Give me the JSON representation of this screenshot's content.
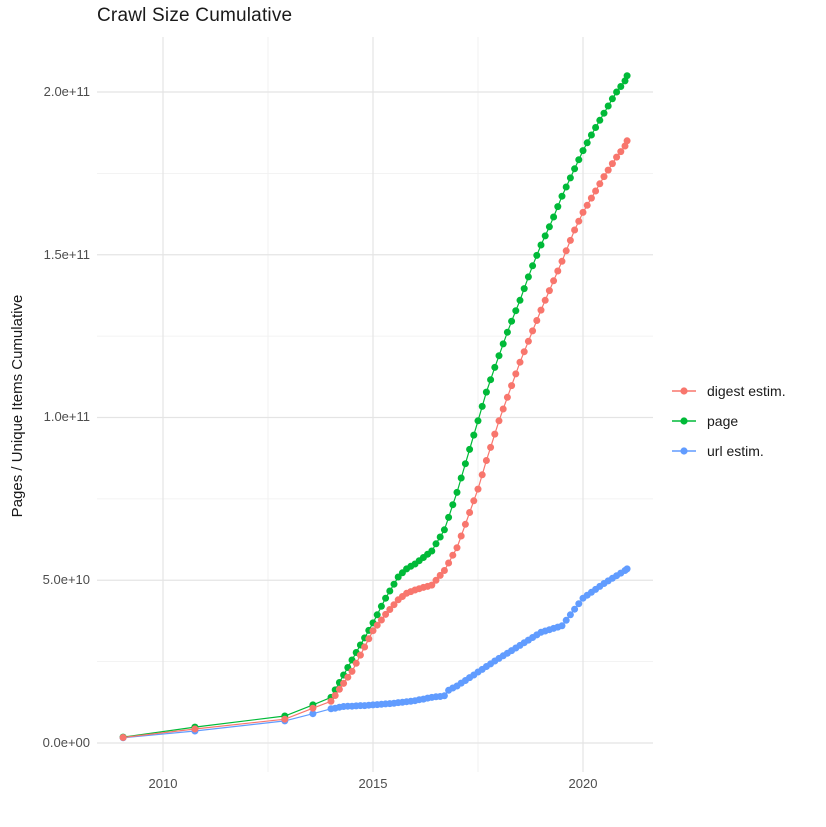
{
  "title": "Crawl Size Cumulative",
  "y_axis_title": "Pages / Unique Items Cumulative",
  "y_ticks": [
    {
      "label": "0.0e+00",
      "value_e10": 0
    },
    {
      "label": "5.0e+10",
      "value_e10": 5
    },
    {
      "label": "1.0e+11",
      "value_e10": 10
    },
    {
      "label": "1.5e+11",
      "value_e10": 15
    },
    {
      "label": "2.0e+11",
      "value_e10": 20
    }
  ],
  "x_ticks": [
    {
      "label": "2010",
      "year": 2010
    },
    {
      "label": "2015",
      "year": 2015
    },
    {
      "label": "2020",
      "year": 2020
    }
  ],
  "legend": {
    "items": [
      {
        "label": "digest estim.",
        "color": "#F8766D",
        "icon": "line-dot-key-icon"
      },
      {
        "label": "page",
        "color": "#00BA38",
        "icon": "line-dot-key-icon"
      },
      {
        "label": "url estim.",
        "color": "#619CFF",
        "icon": "line-dot-key-icon"
      }
    ]
  },
  "colors": {
    "background": "#ffffff",
    "grid_major": "#e4e4e4",
    "grid_minor": "#efefef",
    "tick_text": "#4d4d4d",
    "title_text": "#1a1a1a",
    "series_digest": "#F8766D",
    "series_page": "#00BA38",
    "series_url": "#619CFF"
  },
  "chart_data": {
    "type": "line",
    "subtype": "line-with-points",
    "title": "Crawl Size Cumulative",
    "xlabel": "",
    "ylabel": "Pages / Unique Items Cumulative",
    "x_unit": "calendar year (decimal)",
    "y_unit": "count, values stored in units of 1e10",
    "xlim": [
      2008.45,
      2021.65
    ],
    "ylim_e10": [
      -0.9,
      21.7
    ],
    "grid": true,
    "legend_position": "right",
    "minor_x_years": [
      2012.5,
      2017.5
    ],
    "minor_y_values_e10": [
      2.5,
      7.5,
      12.5,
      17.5
    ],
    "draw_order": [
      "page",
      "url estim.",
      "digest estim."
    ],
    "series": [
      {
        "name": "digest estim.",
        "color": "#F8766D",
        "points_year_e10": [
          [
            2009.05,
            0.17
          ],
          [
            2010.76,
            0.43
          ],
          [
            2012.9,
            0.73
          ],
          [
            2013.57,
            1.07
          ],
          [
            2014.0,
            1.28
          ],
          [
            2014.1,
            1.46
          ],
          [
            2014.2,
            1.65
          ],
          [
            2014.3,
            1.83
          ],
          [
            2014.4,
            2.02
          ],
          [
            2014.5,
            2.2
          ],
          [
            2014.6,
            2.45
          ],
          [
            2014.7,
            2.7
          ],
          [
            2014.8,
            2.95
          ],
          [
            2014.9,
            3.2
          ],
          [
            2015.0,
            3.45
          ],
          [
            2015.1,
            3.62
          ],
          [
            2015.2,
            3.78
          ],
          [
            2015.3,
            3.95
          ],
          [
            2015.4,
            4.1
          ],
          [
            2015.5,
            4.25
          ],
          [
            2015.6,
            4.4
          ],
          [
            2015.7,
            4.5
          ],
          [
            2015.8,
            4.6
          ],
          [
            2015.9,
            4.65
          ],
          [
            2016.0,
            4.7
          ],
          [
            2016.1,
            4.74
          ],
          [
            2016.2,
            4.78
          ],
          [
            2016.3,
            4.81
          ],
          [
            2016.4,
            4.85
          ],
          [
            2016.5,
            5.0
          ],
          [
            2016.6,
            5.15
          ],
          [
            2016.7,
            5.3
          ],
          [
            2016.8,
            5.53
          ],
          [
            2016.9,
            5.77
          ],
          [
            2017.0,
            6.0
          ],
          [
            2017.1,
            6.36
          ],
          [
            2017.2,
            6.72
          ],
          [
            2017.3,
            7.08
          ],
          [
            2017.4,
            7.44
          ],
          [
            2017.5,
            7.8
          ],
          [
            2017.6,
            8.24
          ],
          [
            2017.7,
            8.68
          ],
          [
            2017.8,
            9.08
          ],
          [
            2017.9,
            9.49
          ],
          [
            2018.0,
            9.9
          ],
          [
            2018.1,
            10.26
          ],
          [
            2018.2,
            10.62
          ],
          [
            2018.3,
            10.98
          ],
          [
            2018.4,
            11.34
          ],
          [
            2018.5,
            11.7
          ],
          [
            2018.6,
            12.02
          ],
          [
            2018.7,
            12.34
          ],
          [
            2018.8,
            12.66
          ],
          [
            2018.9,
            12.98
          ],
          [
            2019.0,
            13.3
          ],
          [
            2019.1,
            13.6
          ],
          [
            2019.2,
            13.9
          ],
          [
            2019.3,
            14.2
          ],
          [
            2019.4,
            14.5
          ],
          [
            2019.5,
            14.8
          ],
          [
            2019.6,
            15.12
          ],
          [
            2019.7,
            15.44
          ],
          [
            2019.8,
            15.76
          ],
          [
            2019.9,
            16.03
          ],
          [
            2020.0,
            16.3
          ],
          [
            2020.1,
            16.52
          ],
          [
            2020.2,
            16.74
          ],
          [
            2020.3,
            16.96
          ],
          [
            2020.4,
            17.18
          ],
          [
            2020.5,
            17.4
          ],
          [
            2020.6,
            17.6
          ],
          [
            2020.7,
            17.8
          ],
          [
            2020.8,
            18.0
          ],
          [
            2020.9,
            18.17
          ],
          [
            2021.0,
            18.34
          ],
          [
            2021.05,
            18.5
          ]
        ]
      },
      {
        "name": "page",
        "color": "#00BA38",
        "points_year_e10": [
          [
            2009.05,
            0.18
          ],
          [
            2010.76,
            0.49
          ],
          [
            2012.9,
            0.83
          ],
          [
            2013.57,
            1.17
          ],
          [
            2014.0,
            1.4
          ],
          [
            2014.1,
            1.63
          ],
          [
            2014.2,
            1.86
          ],
          [
            2014.3,
            2.09
          ],
          [
            2014.4,
            2.32
          ],
          [
            2014.5,
            2.55
          ],
          [
            2014.6,
            2.78
          ],
          [
            2014.7,
            3.01
          ],
          [
            2014.8,
            3.23
          ],
          [
            2014.9,
            3.46
          ],
          [
            2015.0,
            3.69
          ],
          [
            2015.1,
            3.94
          ],
          [
            2015.2,
            4.2
          ],
          [
            2015.3,
            4.45
          ],
          [
            2015.4,
            4.67
          ],
          [
            2015.5,
            4.88
          ],
          [
            2015.6,
            5.1
          ],
          [
            2015.7,
            5.23
          ],
          [
            2015.8,
            5.35
          ],
          [
            2015.9,
            5.43
          ],
          [
            2016.0,
            5.5
          ],
          [
            2016.1,
            5.6
          ],
          [
            2016.2,
            5.7
          ],
          [
            2016.3,
            5.8
          ],
          [
            2016.4,
            5.9
          ],
          [
            2016.5,
            6.12
          ],
          [
            2016.6,
            6.33
          ],
          [
            2016.7,
            6.55
          ],
          [
            2016.8,
            6.93
          ],
          [
            2016.9,
            7.32
          ],
          [
            2017.0,
            7.7
          ],
          [
            2017.1,
            8.14
          ],
          [
            2017.2,
            8.58
          ],
          [
            2017.3,
            9.02
          ],
          [
            2017.4,
            9.46
          ],
          [
            2017.5,
            9.9
          ],
          [
            2017.6,
            10.34
          ],
          [
            2017.7,
            10.78
          ],
          [
            2017.8,
            11.16
          ],
          [
            2017.9,
            11.54
          ],
          [
            2018.0,
            11.9
          ],
          [
            2018.1,
            12.26
          ],
          [
            2018.2,
            12.62
          ],
          [
            2018.3,
            12.96
          ],
          [
            2018.4,
            13.28
          ],
          [
            2018.5,
            13.6
          ],
          [
            2018.6,
            13.96
          ],
          [
            2018.7,
            14.32
          ],
          [
            2018.8,
            14.66
          ],
          [
            2018.9,
            14.98
          ],
          [
            2019.0,
            15.3
          ],
          [
            2019.1,
            15.58
          ],
          [
            2019.2,
            15.86
          ],
          [
            2019.3,
            16.16
          ],
          [
            2019.4,
            16.48
          ],
          [
            2019.5,
            16.8
          ],
          [
            2019.6,
            17.08
          ],
          [
            2019.7,
            17.36
          ],
          [
            2019.8,
            17.64
          ],
          [
            2019.9,
            17.92
          ],
          [
            2020.0,
            18.2
          ],
          [
            2020.1,
            18.44
          ],
          [
            2020.2,
            18.68
          ],
          [
            2020.3,
            18.91
          ],
          [
            2020.4,
            19.13
          ],
          [
            2020.5,
            19.35
          ],
          [
            2020.6,
            19.57
          ],
          [
            2020.7,
            19.79
          ],
          [
            2020.8,
            20.0
          ],
          [
            2020.9,
            20.17
          ],
          [
            2021.0,
            20.34
          ],
          [
            2021.05,
            20.5
          ]
        ]
      },
      {
        "name": "url estim.",
        "color": "#619CFF",
        "points_year_e10": [
          [
            2009.05,
            0.16
          ],
          [
            2010.76,
            0.37
          ],
          [
            2012.9,
            0.68
          ],
          [
            2013.57,
            0.9
          ],
          [
            2014.0,
            1.05
          ],
          [
            2014.1,
            1.07
          ],
          [
            2014.2,
            1.1
          ],
          [
            2014.3,
            1.12
          ],
          [
            2014.4,
            1.13
          ],
          [
            2014.5,
            1.13
          ],
          [
            2014.6,
            1.14
          ],
          [
            2014.7,
            1.15
          ],
          [
            2014.8,
            1.15
          ],
          [
            2014.9,
            1.16
          ],
          [
            2015.0,
            1.17
          ],
          [
            2015.1,
            1.18
          ],
          [
            2015.2,
            1.19
          ],
          [
            2015.3,
            1.2
          ],
          [
            2015.4,
            1.21
          ],
          [
            2015.5,
            1.22
          ],
          [
            2015.6,
            1.24
          ],
          [
            2015.7,
            1.25
          ],
          [
            2015.8,
            1.27
          ],
          [
            2015.9,
            1.28
          ],
          [
            2016.0,
            1.3
          ],
          [
            2016.1,
            1.33
          ],
          [
            2016.2,
            1.35
          ],
          [
            2016.3,
            1.38
          ],
          [
            2016.4,
            1.4
          ],
          [
            2016.5,
            1.42
          ],
          [
            2016.6,
            1.43
          ],
          [
            2016.7,
            1.45
          ],
          [
            2016.8,
            1.62
          ],
          [
            2016.9,
            1.69
          ],
          [
            2017.0,
            1.75
          ],
          [
            2017.1,
            1.84
          ],
          [
            2017.2,
            1.92
          ],
          [
            2017.3,
            2.01
          ],
          [
            2017.4,
            2.09
          ],
          [
            2017.5,
            2.18
          ],
          [
            2017.6,
            2.26
          ],
          [
            2017.7,
            2.35
          ],
          [
            2017.8,
            2.43
          ],
          [
            2017.9,
            2.52
          ],
          [
            2018.0,
            2.6
          ],
          [
            2018.1,
            2.68
          ],
          [
            2018.2,
            2.76
          ],
          [
            2018.3,
            2.84
          ],
          [
            2018.4,
            2.92
          ],
          [
            2018.5,
            3.0
          ],
          [
            2018.6,
            3.08
          ],
          [
            2018.7,
            3.16
          ],
          [
            2018.8,
            3.24
          ],
          [
            2018.9,
            3.32
          ],
          [
            2019.0,
            3.4
          ],
          [
            2019.1,
            3.44
          ],
          [
            2019.2,
            3.48
          ],
          [
            2019.3,
            3.52
          ],
          [
            2019.4,
            3.56
          ],
          [
            2019.5,
            3.6
          ],
          [
            2019.6,
            3.77
          ],
          [
            2019.7,
            3.94
          ],
          [
            2019.8,
            4.11
          ],
          [
            2019.9,
            4.28
          ],
          [
            2020.0,
            4.45
          ],
          [
            2020.1,
            4.54
          ],
          [
            2020.2,
            4.63
          ],
          [
            2020.3,
            4.72
          ],
          [
            2020.4,
            4.81
          ],
          [
            2020.5,
            4.9
          ],
          [
            2020.6,
            4.98
          ],
          [
            2020.7,
            5.06
          ],
          [
            2020.8,
            5.14
          ],
          [
            2020.9,
            5.22
          ],
          [
            2021.0,
            5.3
          ],
          [
            2021.05,
            5.35
          ]
        ]
      }
    ]
  }
}
